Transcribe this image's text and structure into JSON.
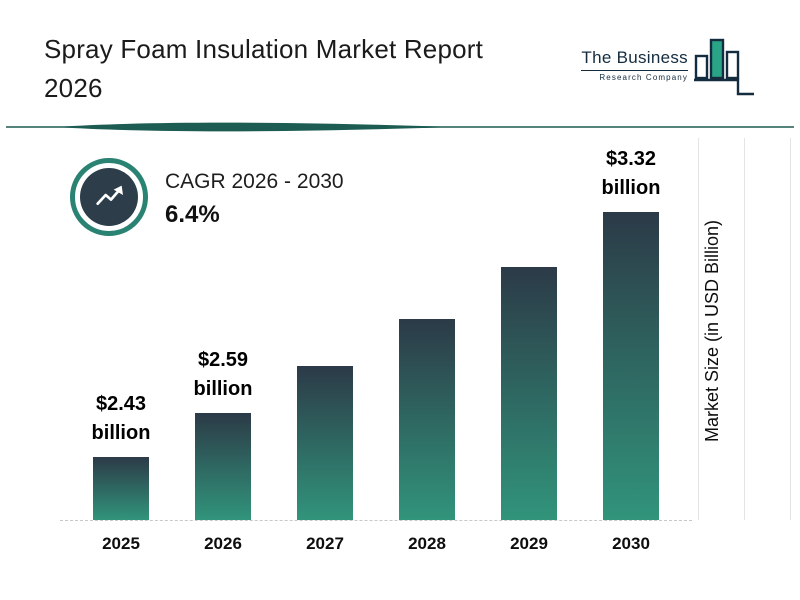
{
  "header": {
    "title_line1": "Spray Foam Insulation Market Report",
    "title_line2": "2026",
    "logo_text": "The Business",
    "logo_subtext": "Research Company"
  },
  "cagr": {
    "label": "CAGR 2026 - 2030",
    "value": "6.4%"
  },
  "chart_data": {
    "type": "bar",
    "title": "Spray Foam Insulation Market Report 2026",
    "categories": [
      "2025",
      "2026",
      "2027",
      "2028",
      "2029",
      "2030"
    ],
    "values": [
      2.43,
      2.59,
      2.76,
      2.93,
      3.12,
      3.32
    ],
    "labels": [
      "$2.43 billion",
      "$2.59 billion",
      null,
      null,
      null,
      "$3.32 billion"
    ],
    "xlabel": "",
    "ylabel": "Market Size (in USD Billion)",
    "ylim": [
      2.2,
      3.4
    ],
    "legend": "none",
    "grid": "faint vertical lines at right edge",
    "bar_gradient_top": "#2c3a47",
    "bar_gradient_bottom": "#31947b"
  },
  "colors": {
    "accent_teal": "#1d5c52",
    "icon_ring": "#2a8273",
    "icon_inner": "#2d3e4a",
    "logo_green": "#2aa486",
    "logo_dark": "#132c3f"
  }
}
